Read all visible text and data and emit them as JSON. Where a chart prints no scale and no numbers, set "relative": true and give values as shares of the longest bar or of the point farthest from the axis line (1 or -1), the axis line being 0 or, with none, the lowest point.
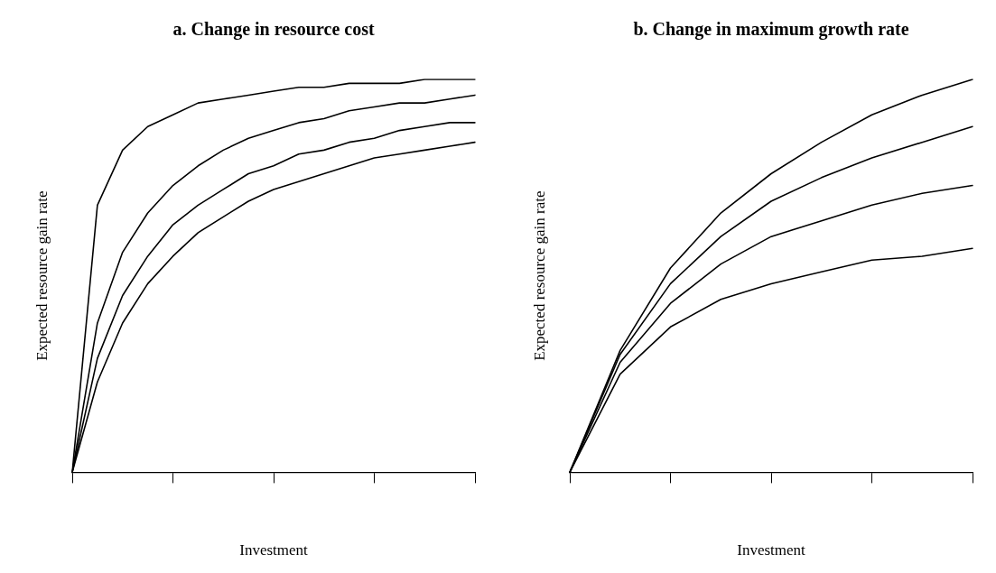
{
  "chart_data": [
    {
      "type": "line",
      "title": "a. Change in resource cost",
      "xlabel": "Investment",
      "ylabel": "Expected resource gain rate",
      "relative": true,
      "grid": false,
      "legend": false,
      "marker": "none",
      "line_style": "solid",
      "categories": [
        null,
        null,
        null,
        null,
        null,
        null,
        null,
        null,
        null,
        null,
        null,
        null,
        null,
        null,
        null,
        null,
        null
      ],
      "series": [
        {
          "color": "#000000",
          "values": [
            0,
            0.68,
            0.82,
            0.88,
            0.91,
            0.94,
            0.95,
            0.96,
            0.97,
            0.98,
            0.98,
            0.99,
            0.99,
            0.99,
            1.0,
            1.0,
            1
          ]
        },
        {
          "color": "#000000",
          "values": [
            0,
            0.38,
            0.56,
            0.66,
            0.73,
            0.78,
            0.82,
            0.85,
            0.87,
            0.89,
            0.9,
            0.92,
            0.93,
            0.94,
            0.94,
            0.95,
            0.96
          ]
        },
        {
          "color": "#000000",
          "values": [
            0,
            0.29,
            0.45,
            0.55,
            0.63,
            0.68,
            0.72,
            0.76,
            0.78,
            0.81,
            0.82,
            0.84,
            0.85,
            0.87,
            0.88,
            0.89,
            0.89
          ]
        },
        {
          "color": "#000000",
          "values": [
            0,
            0.23,
            0.38,
            0.48,
            0.55,
            0.61,
            0.65,
            0.69,
            0.72,
            0.74,
            0.76,
            0.78,
            0.8,
            0.81,
            0.82,
            0.83,
            0.84
          ]
        }
      ]
    },
    {
      "type": "line",
      "title": "b. Change in maximum growth rate",
      "xlabel": "Investment",
      "ylabel": "Expected resource gain rate",
      "relative": true,
      "grid": false,
      "legend": false,
      "marker": "none",
      "line_style": "solid",
      "categories": [
        null,
        null,
        null,
        null,
        null,
        null,
        null,
        null,
        null
      ],
      "series": [
        {
          "color": "#000000",
          "values": [
            0,
            0.31,
            0.52,
            0.66,
            0.76,
            0.84,
            0.91,
            0.96,
            1
          ]
        },
        {
          "color": "#000000",
          "values": [
            0,
            0.3,
            0.48,
            0.6,
            0.69,
            0.75,
            0.8,
            0.84,
            0.88
          ]
        },
        {
          "color": "#000000",
          "values": [
            0,
            0.28,
            0.43,
            0.53,
            0.6,
            0.64,
            0.68,
            0.71,
            0.73
          ]
        },
        {
          "color": "#000000",
          "values": [
            0,
            0.25,
            0.37,
            0.44,
            0.48,
            0.51,
            0.54,
            0.55,
            0.57
          ]
        }
      ]
    }
  ]
}
